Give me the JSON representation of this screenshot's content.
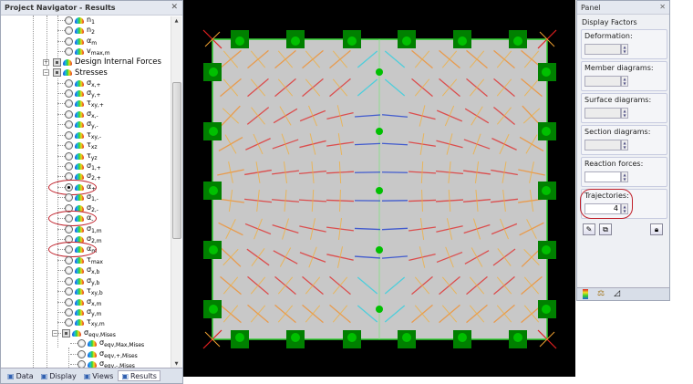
{
  "navigator": {
    "title": "Project Navigator - Results",
    "items": [
      {
        "type": "radio",
        "sym": "n",
        "sub": "1",
        "level": 2
      },
      {
        "type": "radio",
        "sym": "n",
        "sub": "2",
        "level": 2
      },
      {
        "type": "radio",
        "sym": "α",
        "sub": "m",
        "level": 2
      },
      {
        "type": "radio",
        "sym": "v",
        "sub": "max,m",
        "level": 2
      },
      {
        "type": "group",
        "label": "Design Internal Forces",
        "expanded": false,
        "level": 1
      },
      {
        "type": "group",
        "label": "Stresses",
        "expanded": true,
        "level": 1
      },
      {
        "type": "radio",
        "sym": "σ",
        "sub": "x,+",
        "level": 2
      },
      {
        "type": "radio",
        "sym": "σ",
        "sub": "y,+",
        "level": 2
      },
      {
        "type": "radio",
        "sym": "τ",
        "sub": "xy,+",
        "level": 2
      },
      {
        "type": "radio",
        "sym": "σ",
        "sub": "x,-",
        "level": 2
      },
      {
        "type": "radio",
        "sym": "σ",
        "sub": "y,-",
        "level": 2
      },
      {
        "type": "radio",
        "sym": "τ",
        "sub": "xy,-",
        "level": 2
      },
      {
        "type": "radio",
        "sym": "τ",
        "sub": "xz",
        "level": 2
      },
      {
        "type": "radio",
        "sym": "τ",
        "sub": "yz",
        "level": 2
      },
      {
        "type": "radio",
        "sym": "σ",
        "sub": "1,+",
        "level": 2
      },
      {
        "type": "radio",
        "sym": "σ",
        "sub": "2,+",
        "level": 2
      },
      {
        "type": "radio",
        "sym": "α",
        "sub": "+",
        "level": 2,
        "selected": true,
        "highlighted": true
      },
      {
        "type": "radio",
        "sym": "σ",
        "sub": "1,-",
        "level": 2
      },
      {
        "type": "radio",
        "sym": "σ",
        "sub": "2,-",
        "level": 2
      },
      {
        "type": "radio",
        "sym": "α",
        "sub": "-",
        "level": 2,
        "highlighted": true
      },
      {
        "type": "radio",
        "sym": "σ",
        "sub": "1,m",
        "level": 2
      },
      {
        "type": "radio",
        "sym": "σ",
        "sub": "2,m",
        "level": 2
      },
      {
        "type": "radio",
        "sym": "α",
        "sub": "m",
        "level": 2,
        "highlighted": true
      },
      {
        "type": "radio",
        "sym": "τ",
        "sub": "max",
        "level": 2
      },
      {
        "type": "radio",
        "sym": "σ",
        "sub": "x,b",
        "level": 2
      },
      {
        "type": "radio",
        "sym": "σ",
        "sub": "y,b",
        "level": 2
      },
      {
        "type": "radio",
        "sym": "τ",
        "sub": "xy,b",
        "level": 2
      },
      {
        "type": "radio",
        "sym": "σ",
        "sub": "x,m",
        "level": 2
      },
      {
        "type": "radio",
        "sym": "σ",
        "sub": "y,m",
        "level": 2
      },
      {
        "type": "radio",
        "sym": "τ",
        "sub": "xy,m",
        "level": 2
      },
      {
        "type": "subgroup",
        "sym": "σ",
        "sub": "eqv,Mises",
        "expanded": true,
        "level": 2
      },
      {
        "type": "radio",
        "sym": "σ",
        "sub": "eqv,Max,Mises",
        "level": 3
      },
      {
        "type": "radio",
        "sym": "σ",
        "sub": "eqv,+,Mises",
        "level": 3
      },
      {
        "type": "radio",
        "sym": "σ",
        "sub": "eqv,-,Mises",
        "level": 3
      }
    ],
    "tabs": [
      {
        "label": "Data",
        "icon": "data-icon"
      },
      {
        "label": "Display",
        "icon": "display-icon"
      },
      {
        "label": "Views",
        "icon": "views-icon"
      },
      {
        "label": "Results",
        "icon": "results-icon",
        "active": true
      }
    ]
  },
  "panel": {
    "title": "Panel",
    "section": "Display Factors",
    "groups": [
      {
        "label": "Deformation:",
        "value": "",
        "enabled": false
      },
      {
        "label": "Member diagrams:",
        "value": "",
        "enabled": false
      },
      {
        "label": "Surface diagrams:",
        "value": "",
        "enabled": false
      },
      {
        "label": "Section diagrams:",
        "value": "",
        "enabled": false
      },
      {
        "label": "Reaction forces:",
        "value": "",
        "enabled": true
      },
      {
        "label": "Trajectories:",
        "value": "4",
        "enabled": true,
        "highlighted": true
      }
    ],
    "buttons": [
      "edit-icon",
      "copy-icon",
      "lock-icon"
    ],
    "tabs": [
      "color-scale-icon",
      "factors-icon",
      "view-icon"
    ]
  },
  "colors": {
    "plate": "#c8c8c8",
    "support": "#008000",
    "node": "#00c000",
    "highlight": "#c0202a",
    "background": "#000000"
  }
}
